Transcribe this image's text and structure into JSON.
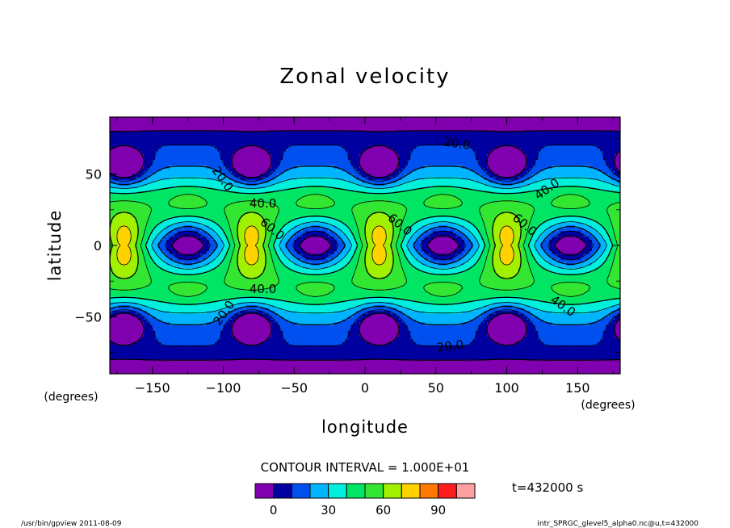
{
  "chart_data": {
    "type": "heatmap",
    "title": "Zonal velocity",
    "xlabel": "longitude",
    "ylabel": "latitude",
    "x_unit": "(degrees)",
    "y_unit": "(degrees)",
    "xlim": [
      -180,
      180
    ],
    "ylim": [
      -90,
      90
    ],
    "x_ticks": [
      -150,
      -100,
      -50,
      0,
      50,
      100,
      150
    ],
    "y_ticks": [
      -50,
      0,
      50
    ],
    "contour_interval_label": "CONTOUR INTERVAL = 1.000E+01",
    "time_label": "t=432000 s",
    "contour_labels": [
      "20.0",
      "40.0",
      "60.0"
    ],
    "colorbar": {
      "levels": [
        -10,
        0,
        10,
        20,
        30,
        40,
        50,
        60,
        70,
        80,
        90,
        100,
        110
      ],
      "colors": [
        "#8000b0",
        "#0000a0",
        "#0050f0",
        "#00b4ff",
        "#00f0dc",
        "#00e664",
        "#32e632",
        "#a0f000",
        "#ffd200",
        "#ff7800",
        "#ff1e1e",
        "#ffa0a0"
      ],
      "tick_labels": [
        "0",
        "30",
        "60",
        "90"
      ],
      "tick_values": [
        0,
        30,
        60,
        90
      ]
    },
    "field_features": {
      "equatorial_jets_lon": [
        -170,
        -80,
        10,
        100
      ],
      "equatorial_minima_lon": [
        -125,
        -35,
        55,
        145
      ],
      "polar_minima_lon": [
        -170,
        -80,
        10,
        100
      ],
      "polar_minima_lat": [
        -55,
        55
      ],
      "max_value_approx": 95,
      "min_value_approx": -5
    }
  },
  "footer": {
    "left": "/usr/bin/gpview   2011-08-09",
    "right": "intr_SPRGC_glevel5_alpha0.nc@u,t=432000"
  }
}
